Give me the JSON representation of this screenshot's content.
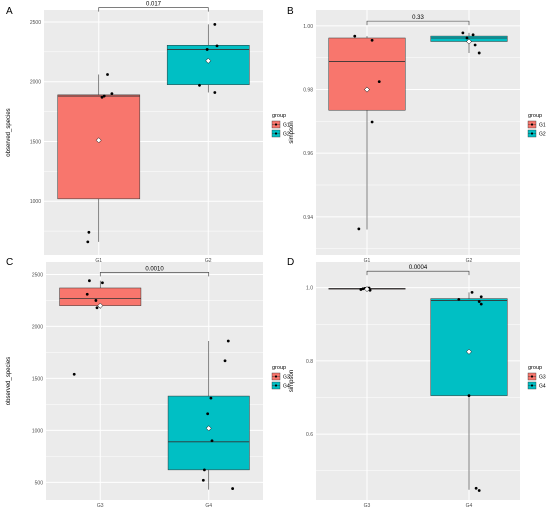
{
  "colors": {
    "G1": "#F8766D",
    "G2": "#00BFC4",
    "G3": "#F8766D",
    "G4": "#00BFC4",
    "panel_bg": "#EBEBEB",
    "grid": "#FFFFFF",
    "text": "#4D4D4D"
  },
  "chart_data": [
    {
      "panel": "A",
      "type": "box",
      "xlabel": "group",
      "ylabel": "observed_species",
      "categories": [
        "G1",
        "G2"
      ],
      "ylim": [
        550,
        2600
      ],
      "yticks": [
        1000,
        1500,
        2000,
        2500
      ],
      "ytick_labels": [
        "1000",
        "1500",
        "2000",
        "2500"
      ],
      "boxes": [
        {
          "name": "G1",
          "min": 660,
          "q1": 1020,
          "median": 1880,
          "q3": 1890,
          "max": 2060,
          "mean": 1510
        },
        {
          "name": "G2",
          "min": 1910,
          "q1": 1975,
          "median": 2270,
          "q3": 2305,
          "max": 2480,
          "mean": 2175
        }
      ],
      "points": [
        {
          "group": "G1",
          "y": 2060,
          "dx": 0.08
        },
        {
          "group": "G1",
          "y": 1900,
          "dx": 0.12
        },
        {
          "group": "G1",
          "y": 1880,
          "dx": 0.05
        },
        {
          "group": "G1",
          "y": 1870,
          "dx": 0.03
        },
        {
          "group": "G1",
          "y": 740,
          "dx": -0.09
        },
        {
          "group": "G1",
          "y": 660,
          "dx": -0.1
        },
        {
          "group": "G2",
          "y": 2480,
          "dx": 0.06
        },
        {
          "group": "G2",
          "y": 2300,
          "dx": 0.08
        },
        {
          "group": "G2",
          "y": 2270,
          "dx": -0.01
        },
        {
          "group": "G2",
          "y": 1970,
          "dx": -0.08
        },
        {
          "group": "G2",
          "y": 1910,
          "dx": 0.06
        }
      ],
      "p_value": "0.017",
      "bracket_y": 2620,
      "legend": {
        "title": "group",
        "items": [
          "G1",
          "G2"
        ]
      }
    },
    {
      "panel": "B",
      "type": "box",
      "xlabel": "group",
      "ylabel": "simpson",
      "categories": [
        "G1",
        "G2"
      ],
      "ylim": [
        0.928,
        1.005
      ],
      "yticks": [
        0.94,
        0.96,
        0.98,
        1.0
      ],
      "ytick_labels": [
        "0.94",
        "0.96",
        "0.98",
        "1.00"
      ],
      "boxes": [
        {
          "name": "G1",
          "min": 0.936,
          "q1": 0.9735,
          "median": 0.9888,
          "q3": 0.9962,
          "max": 0.9968,
          "mean": 0.98
        },
        {
          "name": "G2",
          "min": 0.9915,
          "q1": 0.9951,
          "median": 0.9962,
          "q3": 0.9968,
          "max": 0.9978,
          "mean": 0.9951
        }
      ],
      "points": [
        {
          "group": "G1",
          "y": 0.9968,
          "dx": -0.12
        },
        {
          "group": "G1",
          "y": 0.9955,
          "dx": 0.05
        },
        {
          "group": "G1",
          "y": 0.9825,
          "dx": 0.12
        },
        {
          "group": "G1",
          "y": 0.9698,
          "dx": 0.05
        },
        {
          "group": "G1",
          "y": 0.9362,
          "dx": -0.08
        },
        {
          "group": "G2",
          "y": 0.9978,
          "dx": -0.06
        },
        {
          "group": "G2",
          "y": 0.9972,
          "dx": 0.04
        },
        {
          "group": "G2",
          "y": 0.9962,
          "dx": -0.02
        },
        {
          "group": "G2",
          "y": 0.994,
          "dx": 0.06
        },
        {
          "group": "G2",
          "y": 0.9915,
          "dx": 0.1
        }
      ],
      "p_value": "0.33",
      "bracket_y": 1.0015,
      "legend": {
        "title": "group",
        "items": [
          "G1",
          "G2"
        ]
      }
    },
    {
      "panel": "C",
      "type": "box",
      "xlabel": "group",
      "ylabel": "observed_species",
      "categories": [
        "G3",
        "G4"
      ],
      "ylim": [
        330,
        2620
      ],
      "yticks": [
        500,
        1000,
        1500,
        2000,
        2500
      ],
      "ytick_labels": [
        "500",
        "1000",
        "1500",
        "2000",
        "2500"
      ],
      "boxes": [
        {
          "name": "G3",
          "min": 2170,
          "q1": 2200,
          "median": 2270,
          "q3": 2370,
          "max": 2440,
          "mean": 2200
        },
        {
          "name": "G4",
          "min": 430,
          "q1": 620,
          "median": 890,
          "q3": 1330,
          "max": 1860,
          "mean": 1020
        }
      ],
      "points": [
        {
          "group": "G3",
          "y": 2440,
          "dx": -0.1
        },
        {
          "group": "G3",
          "y": 2420,
          "dx": 0.02
        },
        {
          "group": "G3",
          "y": 2310,
          "dx": -0.12
        },
        {
          "group": "G3",
          "y": 2250,
          "dx": -0.04
        },
        {
          "group": "G3",
          "y": 2180,
          "dx": -0.03
        },
        {
          "group": "G3",
          "y": 1540,
          "dx": -0.24
        },
        {
          "group": "G4",
          "y": 1860,
          "dx": 0.18
        },
        {
          "group": "G4",
          "y": 1670,
          "dx": 0.15
        },
        {
          "group": "G4",
          "y": 1310,
          "dx": 0.02
        },
        {
          "group": "G4",
          "y": 1160,
          "dx": -0.01
        },
        {
          "group": "G4",
          "y": 900,
          "dx": 0.03
        },
        {
          "group": "G4",
          "y": 620,
          "dx": -0.04
        },
        {
          "group": "G4",
          "y": 520,
          "dx": -0.05
        },
        {
          "group": "G4",
          "y": 440,
          "dx": 0.22
        }
      ],
      "p_value": "0.0010",
      "bracket_y": 2520,
      "legend": {
        "title": "group",
        "items": [
          "G3",
          "G4"
        ]
      }
    },
    {
      "panel": "D",
      "type": "box",
      "xlabel": "group",
      "ylabel": "simpson",
      "categories": [
        "G3",
        "G4"
      ],
      "ylim": [
        0.42,
        1.07
      ],
      "yticks": [
        0.6,
        0.8,
        1.0
      ],
      "ytick_labels": [
        "0.6",
        "0.8",
        "1.0"
      ],
      "boxes": [
        {
          "name": "G3",
          "min": 0.993,
          "q1": 0.996,
          "median": 0.997,
          "q3": 0.998,
          "max": 0.999,
          "mean": 0.996
        },
        {
          "name": "G4",
          "min": 0.448,
          "q1": 0.705,
          "median": 0.965,
          "q3": 0.97,
          "max": 0.987,
          "mean": 0.825
        }
      ],
      "points": [
        {
          "group": "G3",
          "y": 0.999,
          "dx": 0.02
        },
        {
          "group": "G3",
          "y": 0.998,
          "dx": -0.02
        },
        {
          "group": "G3",
          "y": 0.997,
          "dx": -0.04
        },
        {
          "group": "G3",
          "y": 0.995,
          "dx": -0.06
        },
        {
          "group": "G3",
          "y": 0.993,
          "dx": 0.03
        },
        {
          "group": "G4",
          "y": 0.987,
          "dx": 0.03
        },
        {
          "group": "G4",
          "y": 0.975,
          "dx": 0.12
        },
        {
          "group": "G4",
          "y": 0.968,
          "dx": -0.1
        },
        {
          "group": "G4",
          "y": 0.962,
          "dx": 0.1
        },
        {
          "group": "G4",
          "y": 0.955,
          "dx": 0.12
        },
        {
          "group": "G4",
          "y": 0.705,
          "dx": 0.0
        },
        {
          "group": "G4",
          "y": 0.452,
          "dx": 0.07
        },
        {
          "group": "G4",
          "y": 0.446,
          "dx": 0.1
        }
      ],
      "p_value": "0.0004",
      "bracket_y": 1.045,
      "legend": {
        "title": "group",
        "items": [
          "G3",
          "G4"
        ]
      }
    }
  ]
}
